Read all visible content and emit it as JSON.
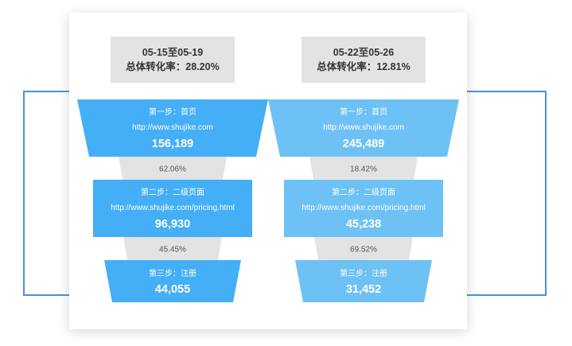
{
  "chart_data": [
    {
      "type": "funnel",
      "title": "05-15至05-19",
      "subtitle": "总体转化率：28.20%",
      "color": "#44aef7",
      "stages": [
        {
          "step": "第一步：首页",
          "url": "http://www.shujike.com",
          "value": 156189,
          "value_label": "156,189"
        },
        {
          "step": "第二步：二级页面",
          "url": "http://www.shujike.com/pricing.html",
          "value": 96930,
          "value_label": "96,930"
        },
        {
          "step": "第三步：注册",
          "url": "",
          "value": 44055,
          "value_label": "44,055"
        }
      ],
      "conversions": [
        "62.06%",
        "45.45%"
      ]
    },
    {
      "type": "funnel",
      "title": "05-22至05-26",
      "subtitle": "总体转化率：12.81%",
      "color": "#6dc1f4",
      "stages": [
        {
          "step": "第一步：首页",
          "url": "http://www.shujike.com",
          "value": 245489,
          "value_label": "245,489"
        },
        {
          "step": "第二步：二级页面",
          "url": "http://www.shujike.com/pricing.html",
          "value": 45238,
          "value_label": "45,238"
        },
        {
          "step": "第三步：注册",
          "url": "",
          "value": 31452,
          "value_label": "31,452"
        }
      ],
      "conversions": [
        "18.42%",
        "69.52%"
      ]
    }
  ],
  "colors": {
    "connector": "#e3e3e3",
    "frame": "#4a90e2"
  }
}
